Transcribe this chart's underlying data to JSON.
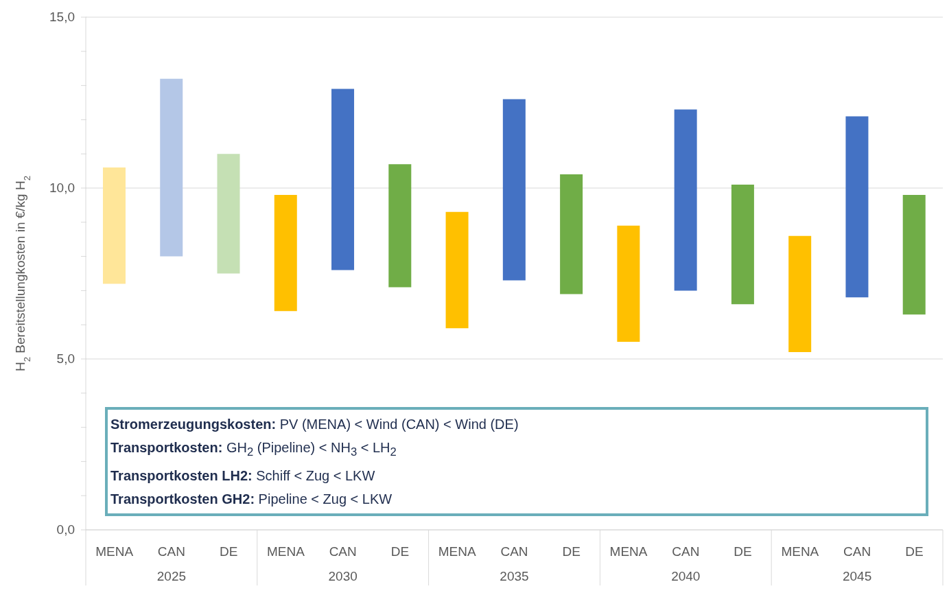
{
  "chart_data": {
    "type": "bar",
    "categories": [
      "MENA",
      "CAN",
      "DE",
      "MENA",
      "CAN",
      "DE",
      "MENA",
      "CAN",
      "DE",
      "MENA",
      "CAN",
      "DE",
      "MENA",
      "CAN",
      "DE"
    ],
    "base": [
      7.2,
      8.0,
      7.5,
      6.4,
      7.6,
      7.1,
      5.9,
      7.3,
      6.9,
      5.5,
      7.0,
      6.6,
      5.2,
      6.8,
      6.3
    ],
    "values": [
      3.4,
      5.2,
      3.5,
      3.4,
      5.3,
      3.6,
      3.4,
      5.3,
      3.5,
      3.4,
      5.3,
      3.5,
      3.4,
      5.3,
      3.5
    ],
    "colors": [
      "#ffe699",
      "#b4c7e7",
      "#c5e0b4",
      "#ffc000",
      "#4472c4",
      "#70ad47",
      "#ffc000",
      "#4472c4",
      "#70ad47",
      "#ffc000",
      "#4472c4",
      "#70ad47",
      "#ffc000",
      "#4472c4",
      "#70ad47"
    ],
    "ylabel": "H$_{2}$ Bereitstellungkosten in €/kg H$_{2}$",
    "ylim": [
      0,
      15
    ],
    "yticks": [
      {
        "value": 0,
        "label": "0,0"
      },
      {
        "value": 1,
        "label": null
      },
      {
        "value": 2,
        "label": null
      },
      {
        "value": 3,
        "label": null
      },
      {
        "value": 4,
        "label": null
      },
      {
        "value": 5,
        "label": "5,0"
      },
      {
        "value": 6,
        "label": null
      },
      {
        "value": 7,
        "label": null
      },
      {
        "value": 8,
        "label": null
      },
      {
        "value": 9,
        "label": null
      },
      {
        "value": 10,
        "label": "10,0"
      },
      {
        "value": 11,
        "label": null
      },
      {
        "value": 12,
        "label": null
      },
      {
        "value": 13,
        "label": null
      },
      {
        "value": 14,
        "label": null
      },
      {
        "value": 15,
        "label": "15,0"
      }
    ],
    "grid": "y",
    "legend": false,
    "annotations": [
      "2025",
      "2030",
      "2035",
      "2040",
      "2045",
      "Stromerzeugungskosten: PV (MENA) < Wind (CAN) < Wind (DE)",
      "Transportkosten: GH$_{2}$ (Pipeline) < NH$_{3}$ < LH$_{2}$",
      "Transportkosten LH2: Schiff < Zug < LKW",
      "Transportkosten GH2: Pipeline < Zug < LKW"
    ]
  }
}
